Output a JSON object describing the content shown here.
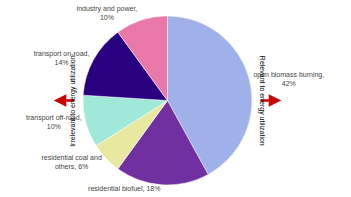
{
  "chart_data": {
    "type": "pie",
    "categories": [
      "open biomass burning,\n42%",
      "residential biofuel, 18%",
      "residential coal and\nothers, 6%",
      "transport off-road,\n10%",
      "transport on-road,\n14%",
      "industry and power,\n10%"
    ],
    "values": [
      42,
      18,
      6,
      10,
      14,
      10
    ],
    "colors": [
      "#a0b0e8",
      "#7030a0",
      "#e8e8a0",
      "#a0e8d8",
      "#280080",
      "#e878a8"
    ],
    "annotations": [
      {
        "text": "Irrelevant to energy utilization",
        "color": "#cc0000"
      },
      {
        "text": "Relevant to energy utilization",
        "color": "#cc0000"
      }
    ]
  }
}
